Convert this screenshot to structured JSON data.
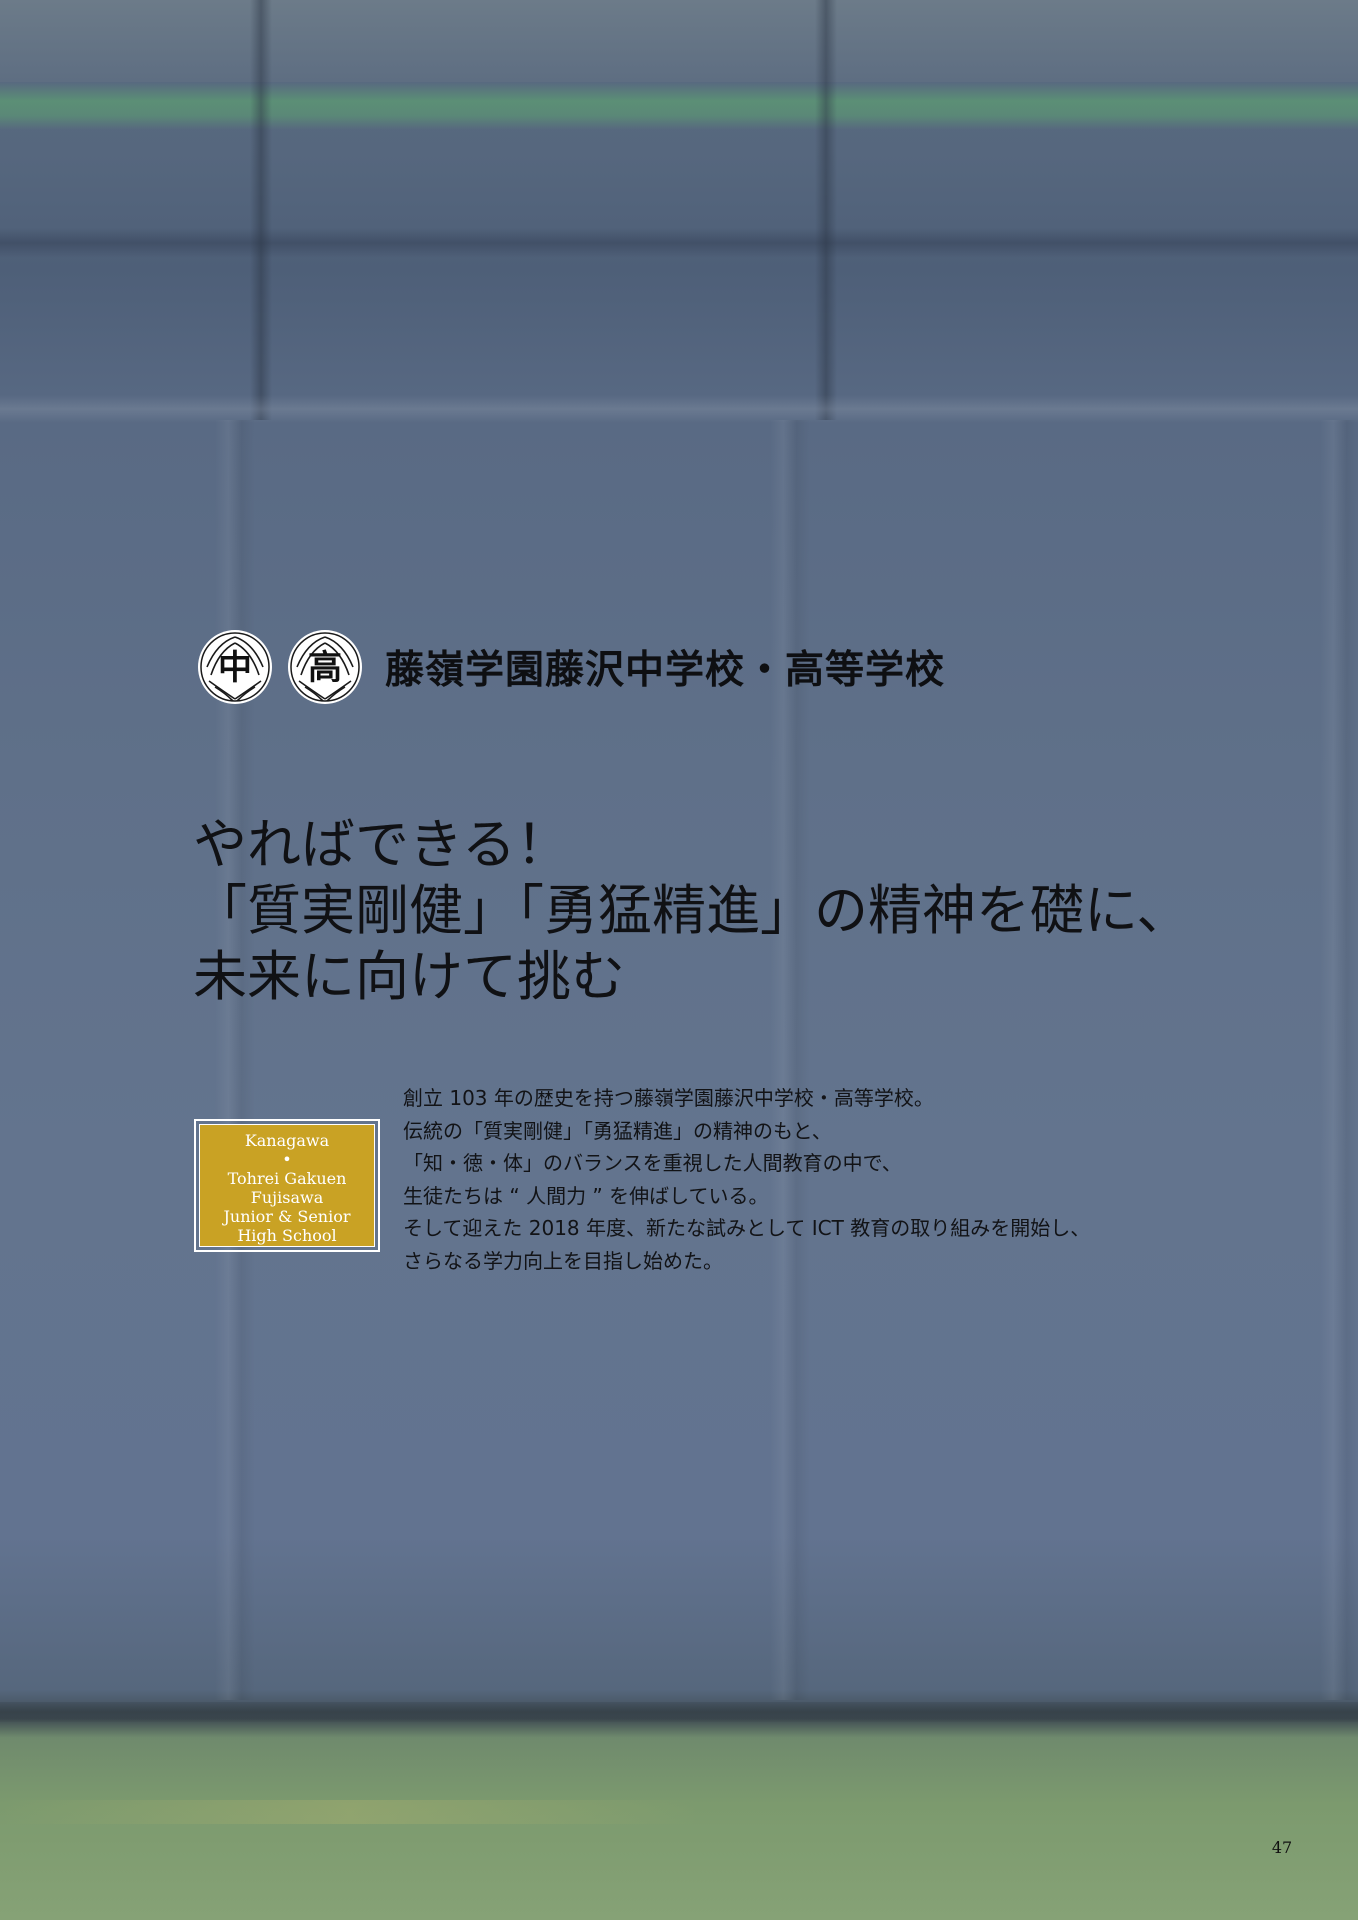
{
  "header": {
    "emblems": [
      {
        "icon": "school-crest-icon",
        "glyph": "中"
      },
      {
        "icon": "school-crest-icon",
        "glyph": "高"
      }
    ],
    "school_name": "藤嶺学園藤沢中学校・高等学校"
  },
  "headline": {
    "lines": [
      "やればできる！",
      "「質実剛健」「勇猛精進」の精神を礎に、",
      "未来に向けて挑む"
    ]
  },
  "badge": {
    "lines": [
      "Kanagawa",
      "•",
      "Tohrei Gakuen",
      "Fujisawa",
      "Junior & Senior",
      "High School"
    ],
    "color": "#c9a224"
  },
  "body": {
    "lines": [
      "創立 103 年の歴史を持つ藤嶺学園藤沢中学校・高等学校。",
      "伝統の「質実剛健」「勇猛精進」の精神のもと、",
      "「知・徳・体」のバランスを重視した人間教育の中で、",
      "生徒たちは “ 人間力 ” を伸ばしている。",
      "そして迎えた 2018 年度、新たな試みとして ICT 教育の取り組みを開始し、",
      "さらなる学力向上を目指し始めた。"
    ]
  },
  "page_number": "47"
}
